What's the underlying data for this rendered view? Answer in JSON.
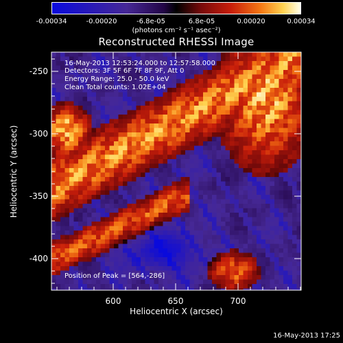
{
  "colorbar": {
    "ticks": [
      "-0.00034",
      "-0.00020",
      "-6.8e-05",
      "6.8e-05",
      "0.00020",
      "0.00034"
    ],
    "units": "(photons cm⁻² s⁻¹ asec⁻²)"
  },
  "title": "Reconstructed RHESSI Image",
  "annotations": {
    "time_range": "16-May-2013 12:53:24.000 to 12:57:58.000",
    "detectors": "Detectors: 3F 5F 6F 7F 8F 9F, Att 0",
    "energy": "Energy Range: 25.0 - 50.0 keV",
    "clean": "Clean     Total counts: 1.02E+04",
    "peak": "Position of Peak = [564,-286]"
  },
  "axes": {
    "xlabel": "Heliocentric X (arcsec)",
    "ylabel": "Heliocentric Y (arcsec)",
    "xticks": [
      "600",
      "650",
      "700"
    ],
    "yticks": [
      "-250",
      "-300",
      "-350",
      "-400"
    ],
    "xlim": [
      553,
      740
    ],
    "ylim": [
      -427,
      -236
    ]
  },
  "footer": {
    "date": "16-May-2013 17:25"
  }
}
